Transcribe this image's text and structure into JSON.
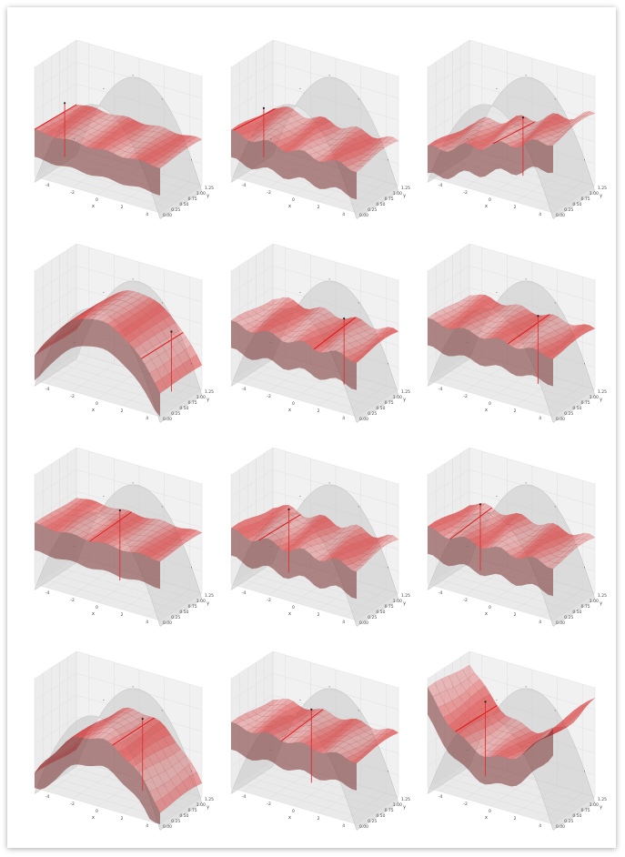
{
  "chart_data": {
    "type": "surface-3d-grid",
    "rows": 4,
    "cols": 3,
    "xlabel": "x",
    "ylabel": "y",
    "xticks": [
      "-4",
      "-2",
      "0",
      "2",
      "4"
    ],
    "yticks": [
      "0.00",
      "0.25",
      "0.50",
      "0.75",
      "1.00",
      "1.25"
    ],
    "true_surface": {
      "color": "#c8c8c8",
      "shape": "x-dome"
    },
    "fitted_surface": {
      "color": "#dc3c3c"
    },
    "panels": [
      {
        "height": 0.42,
        "marker_x": -5.0,
        "ripple": 0.1,
        "shape": "flat"
      },
      {
        "height": 0.4,
        "marker_x": -4.8,
        "ripple": 0.25,
        "shape": "flat"
      },
      {
        "height": 0.45,
        "marker_x": 0.2,
        "ripple": 0.3,
        "shape": "ramp"
      },
      {
        "height": 0.6,
        "marker_x": 3.5,
        "ripple": 0.05,
        "shape": "dome"
      },
      {
        "height": 0.52,
        "marker_x": 1.6,
        "ripple": 0.25,
        "shape": "flat"
      },
      {
        "height": 0.55,
        "marker_x": 1.4,
        "ripple": 0.2,
        "shape": "flat"
      },
      {
        "height": 0.55,
        "marker_x": -0.6,
        "ripple": 0.1,
        "shape": "flat"
      },
      {
        "height": 0.48,
        "marker_x": -2.8,
        "ripple": 0.3,
        "shape": "flat"
      },
      {
        "height": 0.5,
        "marker_x": -3.2,
        "ripple": 0.25,
        "shape": "flat"
      },
      {
        "height": 0.5,
        "marker_x": 1.2,
        "ripple": 0.15,
        "shape": "dome"
      },
      {
        "height": 0.58,
        "marker_x": -1.0,
        "ripple": 0.2,
        "shape": "flat"
      },
      {
        "height": 0.55,
        "marker_x": -2.8,
        "ripple": 0.2,
        "shape": "valley"
      }
    ]
  }
}
